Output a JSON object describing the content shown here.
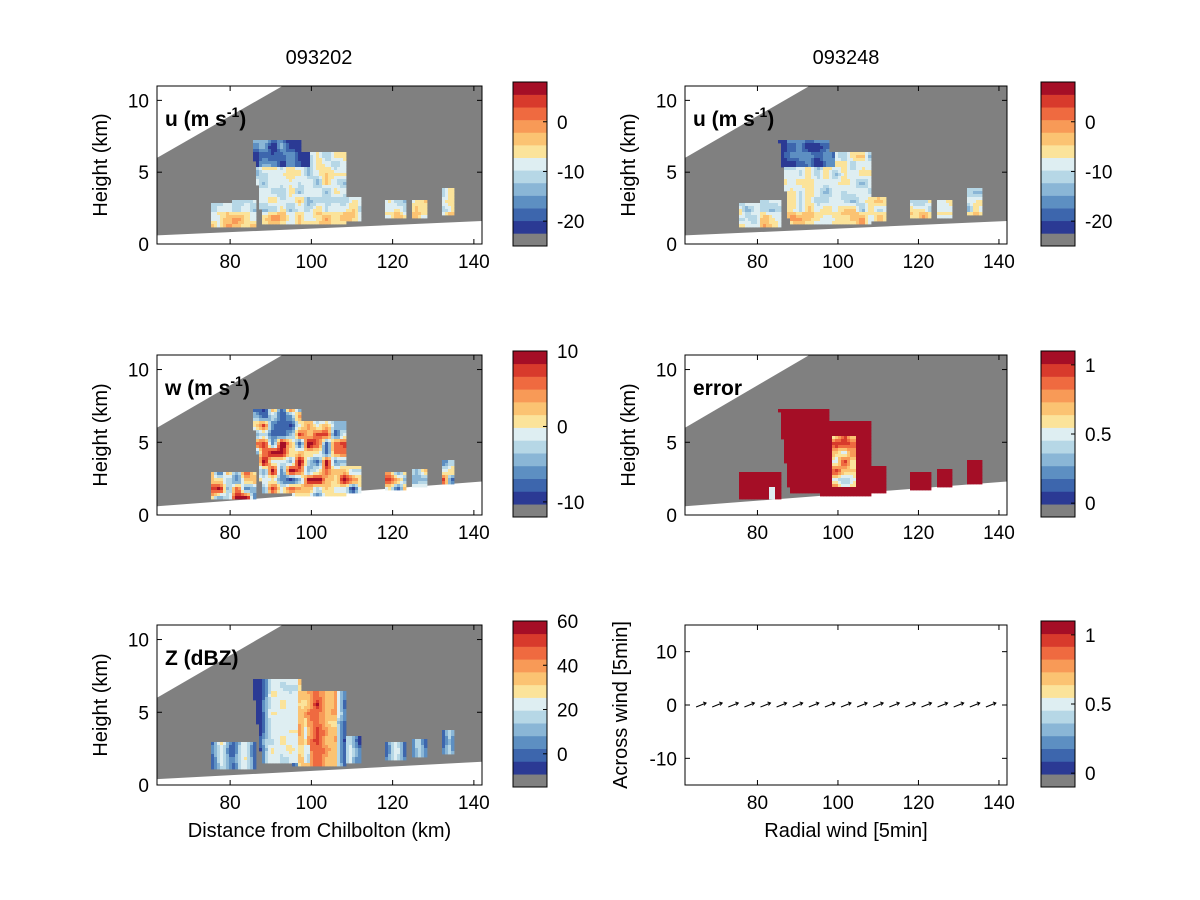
{
  "figure": {
    "column_titles": [
      "093202",
      "093248"
    ]
  },
  "colormap": {
    "bad_color": "#808080",
    "levels": [
      "#2b3a94",
      "#3d66ad",
      "#5d8fc2",
      "#8ab6d6",
      "#b6d7e6",
      "#deeef2",
      "#fbe39a",
      "#fbc372",
      "#f89a57",
      "#ef6a40",
      "#d83a2c",
      "#a50e26"
    ]
  },
  "chart_data": [
    {
      "type": "heatmap",
      "panel": "u",
      "column": "093202",
      "label_main": "u (m s",
      "label_sup": "-1",
      "label_close": ")",
      "xlabel": "",
      "ylabel": "Height (km)",
      "xticks": [
        "80",
        "100",
        "120",
        "140"
      ],
      "yticks": [
        "0",
        "5",
        "10"
      ],
      "xlim": [
        62,
        142
      ],
      "ylim": [
        0,
        11
      ],
      "colorbar": {
        "ticks": [
          "0",
          "-10",
          "-20"
        ],
        "range": [
          -25,
          8
        ]
      }
    },
    {
      "type": "heatmap",
      "panel": "u",
      "column": "093248",
      "label_main": "u (m s",
      "label_sup": "-1",
      "label_close": ")",
      "xlabel": "",
      "ylabel": "Height (km)",
      "xticks": [
        "80",
        "100",
        "120",
        "140"
      ],
      "yticks": [
        "0",
        "5",
        "10"
      ],
      "xlim": [
        62,
        142
      ],
      "ylim": [
        0,
        11
      ],
      "colorbar": {
        "ticks": [
          "0",
          "-10",
          "-20"
        ],
        "range": [
          -25,
          8
        ]
      }
    },
    {
      "type": "heatmap",
      "panel": "w",
      "column": "093202",
      "label_main": "w (m s",
      "label_sup": "-1",
      "label_close": ")",
      "xlabel": "",
      "ylabel": "Height (km)",
      "xticks": [
        "80",
        "100",
        "120",
        "140"
      ],
      "yticks": [
        "0",
        "5",
        "10"
      ],
      "xlim": [
        62,
        142
      ],
      "ylim": [
        0,
        11
      ],
      "colorbar": {
        "ticks": [
          "10",
          "0",
          "-10"
        ],
        "range": [
          -12,
          10
        ]
      }
    },
    {
      "type": "heatmap",
      "panel": "error",
      "column": "093248",
      "label_main": "error",
      "label_sup": "",
      "label_close": "",
      "xlabel": "",
      "ylabel": "Height (km)",
      "xticks": [
        "80",
        "100",
        "120",
        "140"
      ],
      "yticks": [
        "0",
        "5",
        "10"
      ],
      "xlim": [
        62,
        142
      ],
      "ylim": [
        0,
        11
      ],
      "colorbar": {
        "ticks": [
          "1",
          "0.5",
          "0"
        ],
        "range": [
          -0.1,
          1.1
        ]
      }
    },
    {
      "type": "heatmap",
      "panel": "Z",
      "column": "093202",
      "label_main": "Z (dBZ)",
      "label_sup": "",
      "label_close": "",
      "xlabel": "Distance from Chilbolton (km)",
      "ylabel": "Height (km)",
      "xticks": [
        "80",
        "100",
        "120",
        "140"
      ],
      "yticks": [
        "0",
        "5",
        "10"
      ],
      "xlim": [
        62,
        142
      ],
      "ylim": [
        0,
        11
      ],
      "colorbar": {
        "ticks": [
          "60",
          "40",
          "20",
          "0"
        ],
        "range": [
          -15,
          60
        ]
      }
    },
    {
      "type": "scatter",
      "panel": "quiver",
      "column": "093248",
      "label_main": "",
      "label_sup": "",
      "label_close": "",
      "xlabel": "Radial wind [5min]",
      "ylabel": "Across wind [5min]",
      "xticks": [
        "80",
        "100",
        "120",
        "140"
      ],
      "yticks": [
        "-10",
        "0",
        "10"
      ],
      "xlim": [
        62,
        142
      ],
      "ylim": [
        -15,
        15
      ],
      "x": [
        66,
        70,
        74,
        78,
        82,
        86,
        90,
        94,
        98,
        102,
        106,
        110,
        114,
        118,
        122,
        126,
        130,
        134,
        138
      ],
      "y": [
        0,
        0,
        0,
        0,
        0,
        0,
        0,
        0,
        0,
        0,
        0,
        0,
        0,
        0,
        0,
        0,
        0,
        0,
        0
      ],
      "colorbar": {
        "ticks": [
          "1",
          "0.5",
          "0"
        ],
        "range": [
          -0.1,
          1.1
        ]
      }
    }
  ]
}
